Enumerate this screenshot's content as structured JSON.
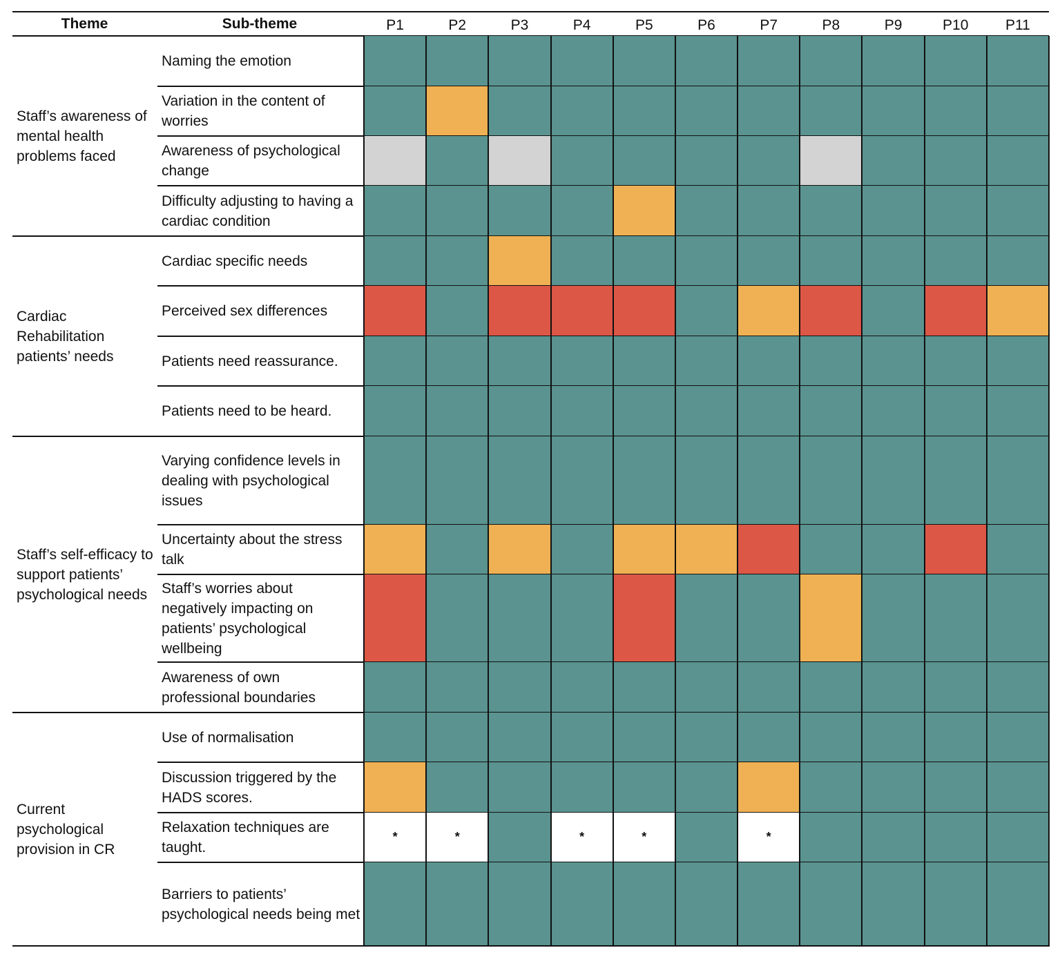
{
  "colors": {
    "teal": "#5a9390",
    "orange": "#efb153",
    "red": "#dc5746",
    "grey": "#d3d3d3",
    "white": "#ffffff"
  },
  "headers": {
    "theme": "Theme",
    "subtheme": "Sub-theme",
    "participants": [
      "P1",
      "P2",
      "P3",
      "P4",
      "P5",
      "P6",
      "P7",
      "P8",
      "P9",
      "P10",
      "P11"
    ]
  },
  "groups": [
    {
      "theme": "Staff’s awareness of mental health problems faced",
      "rows": [
        {
          "label": "Naming the emotion",
          "cells": [
            "T",
            "T",
            "T",
            "T",
            "T",
            "T",
            "T",
            "T",
            "T",
            "T",
            "T"
          ]
        },
        {
          "label": "Variation in the content of worries",
          "cells": [
            "T",
            "O",
            "T",
            "T",
            "T",
            "T",
            "T",
            "T",
            "T",
            "T",
            "T"
          ]
        },
        {
          "label": "Awareness of psychological change",
          "cells": [
            "G",
            "T",
            "G",
            "T",
            "T",
            "T",
            "T",
            "G",
            "T",
            "T",
            "T"
          ]
        },
        {
          "label": "Difficulty adjusting to having a cardiac condition",
          "cells": [
            "T",
            "T",
            "T",
            "T",
            "O",
            "T",
            "T",
            "T",
            "T",
            "T",
            "T"
          ]
        }
      ]
    },
    {
      "theme": "Cardiac Rehabilitation patients’ needs",
      "rows": [
        {
          "label": "Cardiac specific needs",
          "cells": [
            "T",
            "T",
            "O",
            "T",
            "T",
            "T",
            "T",
            "T",
            "T",
            "T",
            "T"
          ]
        },
        {
          "label": "Perceived sex differences",
          "cells": [
            "R",
            "T",
            "R",
            "R",
            "R",
            "T",
            "O",
            "R",
            "T",
            "R",
            "O"
          ]
        },
        {
          "label": "Patients need reassurance.",
          "cells": [
            "T",
            "T",
            "T",
            "T",
            "T",
            "T",
            "T",
            "T",
            "T",
            "T",
            "T"
          ]
        },
        {
          "label": "Patients need to be heard.",
          "cells": [
            "T",
            "T",
            "T",
            "T",
            "T",
            "T",
            "T",
            "T",
            "T",
            "T",
            "T"
          ]
        }
      ]
    },
    {
      "theme": "Staff’s self-efficacy to support patients’ psychological needs",
      "rows": [
        {
          "label": "Varying confidence levels in dealing with psychological issues",
          "cells": [
            "T",
            "T",
            "T",
            "T",
            "T",
            "T",
            "T",
            "T",
            "T",
            "T",
            "T"
          ]
        },
        {
          "label": "Uncertainty about the stress talk",
          "cells": [
            "O",
            "T",
            "O",
            "T",
            "O",
            "O",
            "R",
            "T",
            "T",
            "R",
            "T"
          ]
        },
        {
          "label": "Staff’s worries about negatively impacting on patients’ psychological wellbeing",
          "cells": [
            "R",
            "T",
            "T",
            "T",
            "R",
            "T",
            "T",
            "O",
            "T",
            "T",
            "T"
          ]
        },
        {
          "label": "Awareness of own professional boundaries",
          "cells": [
            "T",
            "T",
            "T",
            "T",
            "T",
            "T",
            "T",
            "T",
            "T",
            "T",
            "T"
          ]
        }
      ]
    },
    {
      "theme": "Current psychological provision in CR",
      "rows": [
        {
          "label": "Use of normalisation",
          "cells": [
            "T",
            "T",
            "T",
            "T",
            "T",
            "T",
            "T",
            "T",
            "T",
            "T",
            "T"
          ]
        },
        {
          "label": "Discussion triggered by the HADS scores.",
          "cells": [
            "O",
            "T",
            "T",
            "T",
            "T",
            "T",
            "O",
            "T",
            "T",
            "T",
            "T"
          ]
        },
        {
          "label": "Relaxation techniques are taught.",
          "cells": [
            "W",
            "W",
            "T",
            "W",
            "W",
            "T",
            "W",
            "T",
            "T",
            "T",
            "T"
          ]
        },
        {
          "label": "Barriers to patients’ psychological needs being met",
          "cells": [
            "T",
            "T",
            "T",
            "T",
            "T",
            "T",
            "T",
            "T",
            "T",
            "T",
            "T"
          ]
        }
      ]
    }
  ],
  "marker_symbol": "*"
}
